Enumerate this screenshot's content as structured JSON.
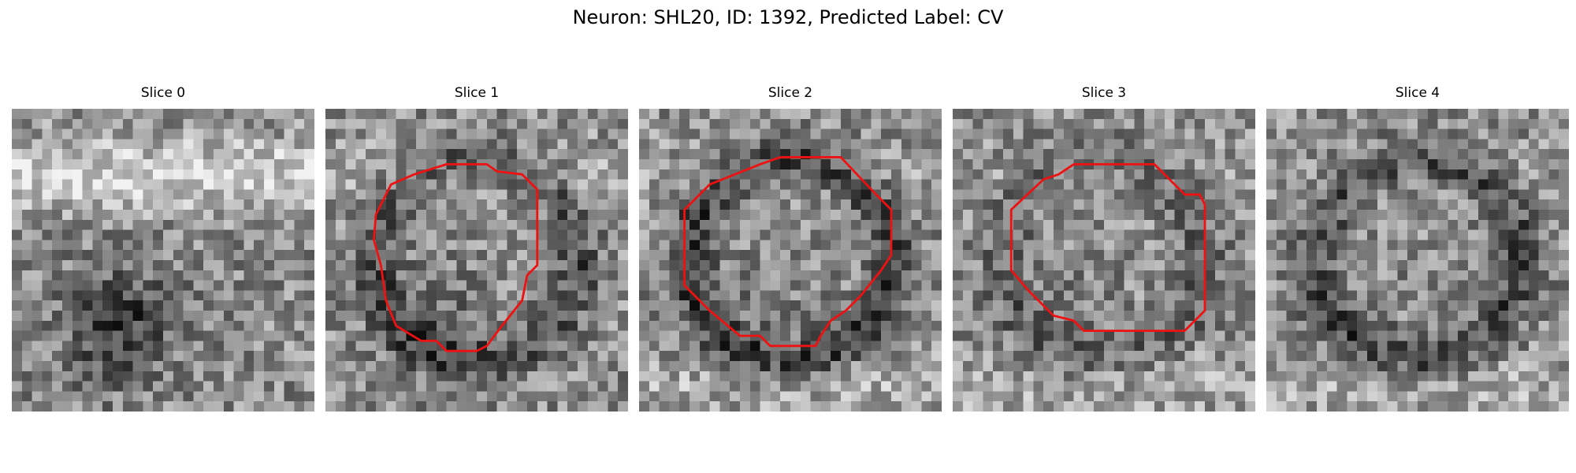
{
  "figure": {
    "title": "Neuron: SHL20, ID: 1392, Predicted Label: CV"
  },
  "slices": [
    {
      "title": "Slice 0",
      "has_contour": false,
      "seed": 11,
      "bright_top": 0.55,
      "dark_ring": 0.0,
      "dark_bottom": 0.55,
      "contour_color": "#ee1111"
    },
    {
      "title": "Slice 1",
      "has_contour": true,
      "seed": 23,
      "bright_top": 0.2,
      "dark_ring": 0.55,
      "dark_bottom": 0.2,
      "contour_color": "#ee1111"
    },
    {
      "title": "Slice 2",
      "has_contour": true,
      "seed": 37,
      "bright_top": 0.15,
      "dark_ring": 0.7,
      "dark_bottom": 0.1,
      "contour_color": "#ee1111"
    },
    {
      "title": "Slice 3",
      "has_contour": true,
      "seed": 51,
      "bright_top": 0.1,
      "dark_ring": 0.35,
      "dark_bottom": 0.1,
      "contour_color": "#ee1111"
    },
    {
      "title": "Slice 4",
      "has_contour": false,
      "seed": 73,
      "bright_top": 0.1,
      "dark_ring": 0.6,
      "dark_bottom": 0.05,
      "contour_color": "#ee1111"
    }
  ]
}
